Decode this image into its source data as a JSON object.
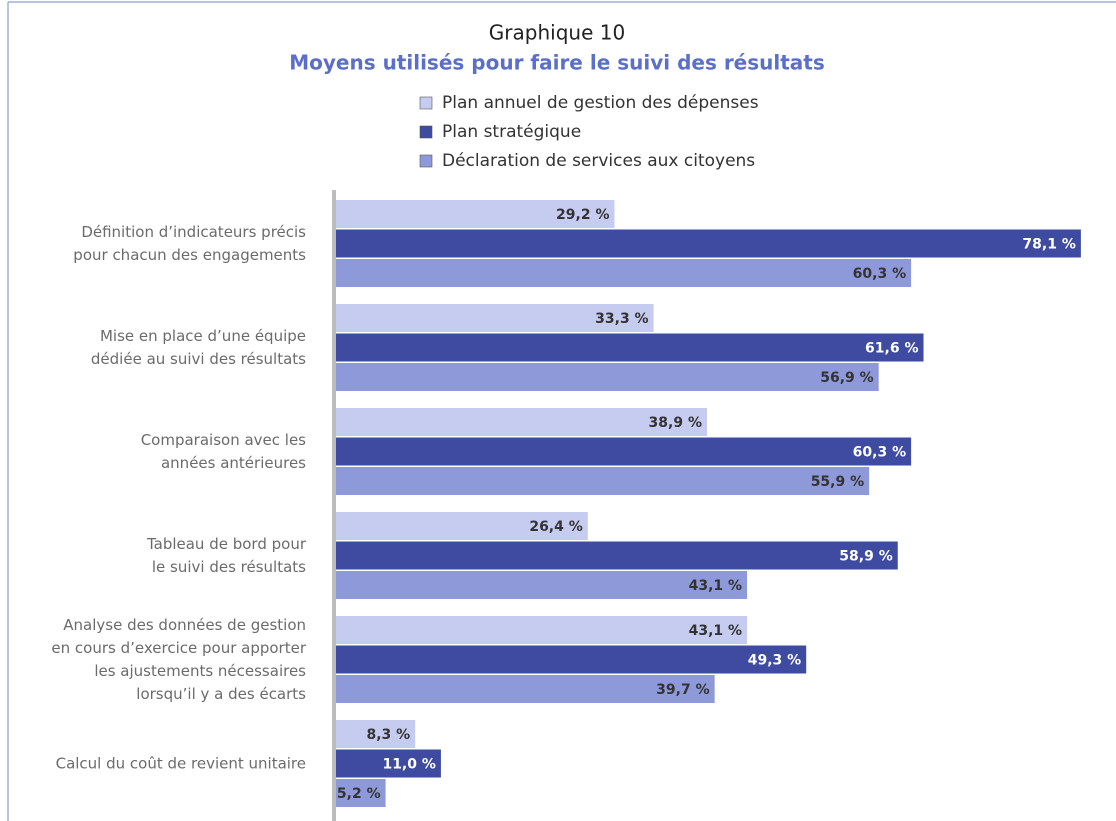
{
  "chart_data": {
    "type": "bar",
    "orientation": "horizontal",
    "title": "Graphique 10",
    "subtitle": "Moyens utilisés pour faire le suivi des résultats",
    "categories": [
      "Définition d’indicateurs précis\npour chacun des engagements",
      "Mise en place d’une équipe\ndédiée au suivi des résultats",
      "Comparaison avec les\nannées antérieures",
      "Tableau de bord pour\nle suivi des résultats",
      "Analyse des données de gestion\nen cours d’exercice pour apporter\nles ajustements nécessaires\nlorsqu’il y a des écarts",
      "Calcul du coût de revient unitaire"
    ],
    "series": [
      {
        "name": "Plan annuel de gestion des dépenses",
        "color": "#c6ccef",
        "values": [
          29.2,
          33.3,
          38.9,
          26.4,
          43.1,
          8.3
        ],
        "value_labels": [
          "29,2 %",
          "33,3 %",
          "38,9 %",
          "26,4 %",
          "43,1 %",
          "8,3 %"
        ]
      },
      {
        "name": "Plan stratégique",
        "color": "#3e4ba0",
        "values": [
          78.1,
          61.6,
          60.3,
          58.9,
          49.3,
          11.0
        ],
        "value_labels": [
          "78,1 %",
          "61,6 %",
          "60,3 %",
          "58,9 %",
          "49,3 %",
          "11,0 %"
        ]
      },
      {
        "name": "Déclaration de services aux citoyens",
        "color": "#8e99d9",
        "values": [
          60.3,
          56.9,
          55.9,
          43.1,
          39.7,
          5.2
        ],
        "value_labels": [
          "60,3 %",
          "56,9 %",
          "55,9 %",
          "43,1 %",
          "39,7 %",
          "5,2 %"
        ]
      }
    ],
    "xlim": [
      0,
      80
    ]
  }
}
